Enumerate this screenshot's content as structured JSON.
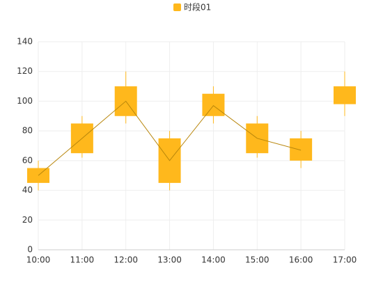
{
  "chart_data": {
    "type": "boxplot",
    "categories": [
      "10:00",
      "11:00",
      "12:00",
      "13:00",
      "14:00",
      "15:00",
      "16:00",
      "17:00"
    ],
    "series": [
      {
        "name": "时段01",
        "color": "#ffb81c",
        "line_color": "#b8860b",
        "low": [
          40,
          62,
          85,
          40,
          85,
          62,
          55,
          90
        ],
        "q1": [
          45,
          65,
          90,
          45,
          90,
          65,
          60,
          98
        ],
        "median": [
          50,
          75,
          100,
          60,
          97,
          75,
          67,
          null
        ],
        "q3": [
          55,
          85,
          110,
          75,
          105,
          85,
          75,
          110
        ],
        "high": [
          60,
          90,
          120,
          80,
          110,
          90,
          80,
          120
        ]
      }
    ],
    "ylim": [
      0,
      140
    ],
    "yticks": [
      0,
      20,
      40,
      60,
      80,
      100,
      120,
      140
    ],
    "grid": true,
    "legend": "top"
  }
}
